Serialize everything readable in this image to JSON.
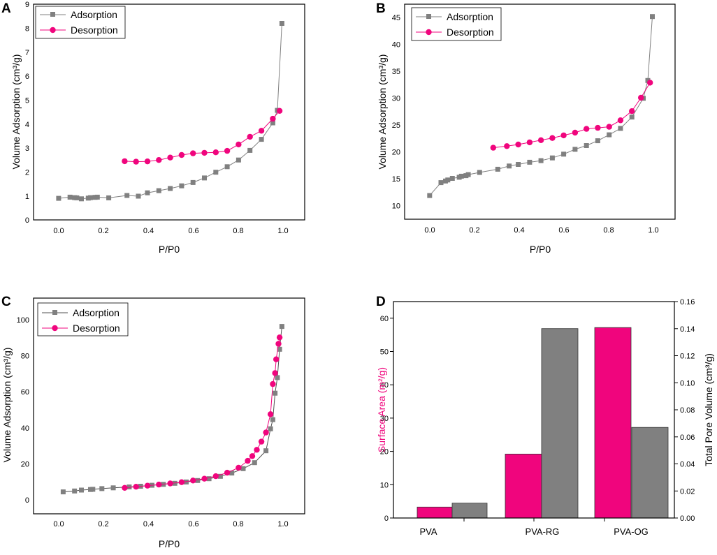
{
  "colors": {
    "adsorption": "#808080",
    "desorption": "#f0057d",
    "axis": "#000000"
  },
  "chart_data": [
    {
      "panel": "A",
      "type": "line",
      "xlabel": "P/P0",
      "ylabel": "Volume Adsorption (cm³/g)",
      "xlim": [
        -0.1,
        1.09
      ],
      "ylim": [
        0,
        9
      ],
      "xticks": [
        "0.0",
        "0.2",
        "0.4",
        "0.6",
        "0.8",
        "1.0"
      ],
      "yticks": [
        "0",
        "1",
        "2",
        "3",
        "4",
        "5",
        "6",
        "7",
        "8",
        "9"
      ],
      "legend": [
        "Adsorption",
        "Desorption"
      ],
      "series": [
        {
          "name": "Adsorption",
          "marker": "square",
          "x": [
            0.01,
            0.06,
            0.08,
            0.09,
            0.11,
            0.14,
            0.15,
            0.17,
            0.18,
            0.23,
            0.31,
            0.36,
            0.4,
            0.45,
            0.5,
            0.55,
            0.6,
            0.65,
            0.7,
            0.75,
            0.8,
            0.85,
            0.9,
            0.95,
            0.97,
            0.99
          ],
          "y": [
            0.9,
            0.95,
            0.93,
            0.92,
            0.88,
            0.91,
            0.93,
            0.94,
            0.95,
            0.92,
            1.02,
            0.99,
            1.13,
            1.22,
            1.31,
            1.42,
            1.56,
            1.75,
            1.99,
            2.22,
            2.5,
            2.9,
            3.36,
            4.05,
            4.57,
            8.2
          ]
        },
        {
          "name": "Desorption",
          "marker": "circle",
          "x": [
            0.3,
            0.35,
            0.4,
            0.45,
            0.5,
            0.55,
            0.6,
            0.65,
            0.7,
            0.75,
            0.8,
            0.85,
            0.9,
            0.95,
            0.98
          ],
          "y": [
            2.45,
            2.43,
            2.44,
            2.5,
            2.6,
            2.71,
            2.78,
            2.8,
            2.82,
            2.88,
            3.15,
            3.47,
            3.72,
            4.22,
            4.55
          ]
        }
      ]
    },
    {
      "panel": "B",
      "type": "line",
      "xlabel": "P/P0",
      "ylabel": "Volume Adsorption (cm³/g)",
      "xlim": [
        -0.1,
        1.09
      ],
      "ylim": [
        7,
        47
      ],
      "xticks": [
        "0.0",
        "0.2",
        "0.4",
        "0.6",
        "0.8",
        "1.0"
      ],
      "yticks": [
        "10",
        "15",
        "20",
        "25",
        "30",
        "35",
        "40",
        "45"
      ],
      "legend": [
        "Adsorption",
        "Desorption"
      ],
      "series": [
        {
          "name": "Adsorption",
          "marker": "square",
          "x": [
            0.01,
            0.06,
            0.08,
            0.09,
            0.11,
            0.14,
            0.15,
            0.17,
            0.18,
            0.23,
            0.31,
            0.36,
            0.4,
            0.45,
            0.5,
            0.55,
            0.6,
            0.65,
            0.7,
            0.75,
            0.8,
            0.85,
            0.9,
            0.95,
            0.97,
            0.99
          ],
          "y": [
            11.4,
            13.8,
            14.1,
            14.3,
            14.6,
            14.8,
            15.0,
            15.1,
            15.3,
            15.7,
            16.3,
            16.9,
            17.2,
            17.6,
            17.9,
            18.4,
            19.1,
            20.0,
            20.7,
            21.6,
            22.7,
            23.9,
            26.0,
            29.5,
            32.8,
            44.7
          ]
        },
        {
          "name": "Desorption",
          "marker": "circle",
          "x": [
            0.29,
            0.35,
            0.4,
            0.45,
            0.5,
            0.55,
            0.6,
            0.65,
            0.7,
            0.75,
            0.8,
            0.85,
            0.9,
            0.94,
            0.98
          ],
          "y": [
            20.3,
            20.6,
            20.9,
            21.3,
            21.7,
            22.1,
            22.6,
            23.1,
            23.8,
            24.0,
            24.2,
            25.4,
            27.1,
            29.6,
            32.4
          ]
        }
      ]
    },
    {
      "panel": "C",
      "type": "line",
      "xlabel": "P/P0",
      "ylabel": "Volume Adsorption (cm³/g)",
      "xlim": [
        -0.1,
        1.09
      ],
      "ylim": [
        -8,
        110
      ],
      "xticks": [
        "0.0",
        "0.2",
        "0.4",
        "0.6",
        "0.8",
        "1.0"
      ],
      "yticks": [
        "0",
        "20",
        "40",
        "60",
        "80",
        "100"
      ],
      "legend": [
        "Adsorption",
        "Desorption"
      ],
      "series": [
        {
          "name": "Adsorption",
          "marker": "square",
          "x": [
            0.03,
            0.08,
            0.11,
            0.15,
            0.16,
            0.2,
            0.25,
            0.32,
            0.37,
            0.42,
            0.47,
            0.52,
            0.57,
            0.62,
            0.67,
            0.72,
            0.77,
            0.82,
            0.87,
            0.92,
            0.94,
            0.95,
            0.96,
            0.97,
            0.98,
            0.99
          ],
          "y": [
            4.0,
            4.5,
            5.0,
            5.3,
            5.4,
            5.8,
            6.2,
            6.7,
            7.1,
            7.6,
            8.1,
            8.7,
            9.4,
            10.2,
            11.2,
            12.5,
            14.3,
            16.7,
            20.0,
            26.5,
            38.5,
            43.5,
            58.0,
            66.5,
            82.0,
            94.5
          ]
        },
        {
          "name": "Desorption",
          "marker": "circle",
          "x": [
            0.3,
            0.35,
            0.4,
            0.45,
            0.5,
            0.55,
            0.6,
            0.65,
            0.7,
            0.75,
            0.8,
            0.84,
            0.86,
            0.88,
            0.9,
            0.92,
            0.94,
            0.95,
            0.96,
            0.965,
            0.975,
            0.98
          ],
          "y": [
            6.2,
            6.8,
            7.4,
            8.0,
            8.6,
            9.3,
            10.2,
            11.2,
            12.6,
            14.5,
            17.2,
            21.0,
            23.6,
            27.0,
            31.5,
            36.5,
            46.5,
            63.0,
            69.0,
            76.5,
            85.0,
            88.5
          ]
        }
      ]
    },
    {
      "panel": "D",
      "type": "bar",
      "categories": [
        "PVA",
        "PVA-RG",
        "PVA-OG"
      ],
      "ylabel": "Surface Area (m²/g)",
      "y2label": "Total Pore Volume (cm³/g)",
      "ylim": [
        0,
        65
      ],
      "y2lim": [
        0,
        0.16
      ],
      "yticks": [
        "0",
        "10",
        "20",
        "30",
        "40",
        "50",
        "60"
      ],
      "y2ticks": [
        "0.00",
        "0.02",
        "0.04",
        "0.06",
        "0.08",
        "0.10",
        "0.12",
        "0.14",
        "0.16"
      ],
      "series": [
        {
          "name": "Surface Area",
          "axis": "left",
          "values": [
            3.3,
            19.2,
            57.2
          ]
        },
        {
          "name": "Total Pore Volume",
          "axis": "right",
          "values": [
            0.011,
            0.14,
            0.067
          ]
        }
      ]
    }
  ],
  "panel_labels": [
    "A",
    "B",
    "C",
    "D"
  ]
}
